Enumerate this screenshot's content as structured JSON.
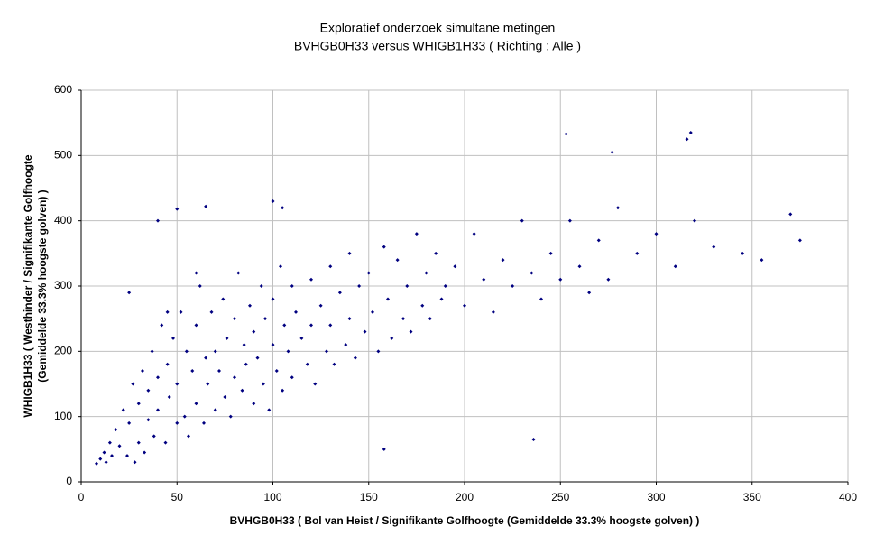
{
  "chart_data": {
    "type": "scatter",
    "title": "Exploratief onderzoek simultane metingen",
    "subtitle": "BVHGB0H33 versus WHIGB1H33 ( Richting : Alle )",
    "xlabel": "BVHGB0H33 ( Bol van Heist / Signifikante Golfhoogte (Gemiddelde 33.3% hoogste golven) )",
    "ylabel": [
      "WHIGB1H33 ( Westhinder / Signifikante Golfhoogte",
      "(Gemiddelde 33.3% hoogste golven) )"
    ],
    "color": "#000080",
    "grid": true,
    "xlim": [
      0,
      400
    ],
    "xticks": [
      0,
      50,
      100,
      150,
      200,
      250,
      300,
      350,
      400
    ],
    "ylim": [
      0,
      600
    ],
    "yticks": [
      0,
      100,
      200,
      300,
      400,
      500,
      600
    ],
    "x": [
      8,
      10,
      12,
      13,
      15,
      16,
      18,
      20,
      22,
      24,
      25,
      27,
      28,
      30,
      30,
      32,
      33,
      35,
      35,
      37,
      38,
      40,
      40,
      42,
      44,
      45,
      46,
      48,
      50,
      50,
      52,
      54,
      55,
      56,
      58,
      60,
      60,
      62,
      64,
      65,
      66,
      68,
      70,
      70,
      72,
      74,
      75,
      76,
      78,
      80,
      80,
      82,
      84,
      85,
      86,
      88,
      90,
      90,
      92,
      94,
      95,
      96,
      98,
      100,
      100,
      102,
      104,
      105,
      106,
      108,
      110,
      110,
      112,
      115,
      118,
      120,
      120,
      122,
      125,
      128,
      130,
      130,
      132,
      135,
      138,
      140,
      140,
      143,
      145,
      148,
      150,
      152,
      155,
      158,
      160,
      162,
      165,
      168,
      170,
      172,
      175,
      178,
      180,
      182,
      185,
      188,
      190,
      195,
      200,
      205,
      210,
      215,
      220,
      225,
      230,
      235,
      240,
      245,
      250,
      255,
      260,
      265,
      270,
      275,
      280,
      290,
      300,
      310,
      320,
      330,
      345,
      355,
      370,
      375,
      40,
      50,
      65,
      25,
      45,
      60,
      100,
      105,
      158,
      236,
      316,
      318,
      253,
      277
    ],
    "y": [
      28,
      35,
      45,
      30,
      60,
      40,
      80,
      55,
      110,
      40,
      90,
      150,
      30,
      120,
      60,
      170,
      45,
      140,
      95,
      200,
      70,
      160,
      110,
      240,
      60,
      180,
      130,
      220,
      90,
      150,
      260,
      100,
      200,
      70,
      170,
      240,
      120,
      300,
      90,
      190,
      150,
      260,
      110,
      200,
      170,
      280,
      130,
      220,
      100,
      250,
      160,
      320,
      140,
      210,
      180,
      270,
      120,
      230,
      190,
      300,
      150,
      250,
      110,
      210,
      280,
      170,
      330,
      140,
      240,
      200,
      300,
      160,
      260,
      220,
      180,
      310,
      240,
      150,
      270,
      200,
      330,
      240,
      180,
      290,
      210,
      350,
      250,
      190,
      300,
      230,
      320,
      260,
      200,
      360,
      280,
      220,
      340,
      250,
      300,
      230,
      380,
      270,
      320,
      250,
      350,
      280,
      300,
      330,
      270,
      380,
      310,
      260,
      340,
      300,
      400,
      320,
      280,
      350,
      310,
      400,
      330,
      290,
      370,
      310,
      420,
      350,
      380,
      330,
      400,
      360,
      350,
      340,
      410,
      370,
      400,
      418,
      422,
      290,
      260,
      320,
      430,
      420,
      50,
      65,
      525,
      535,
      533,
      505
    ]
  }
}
